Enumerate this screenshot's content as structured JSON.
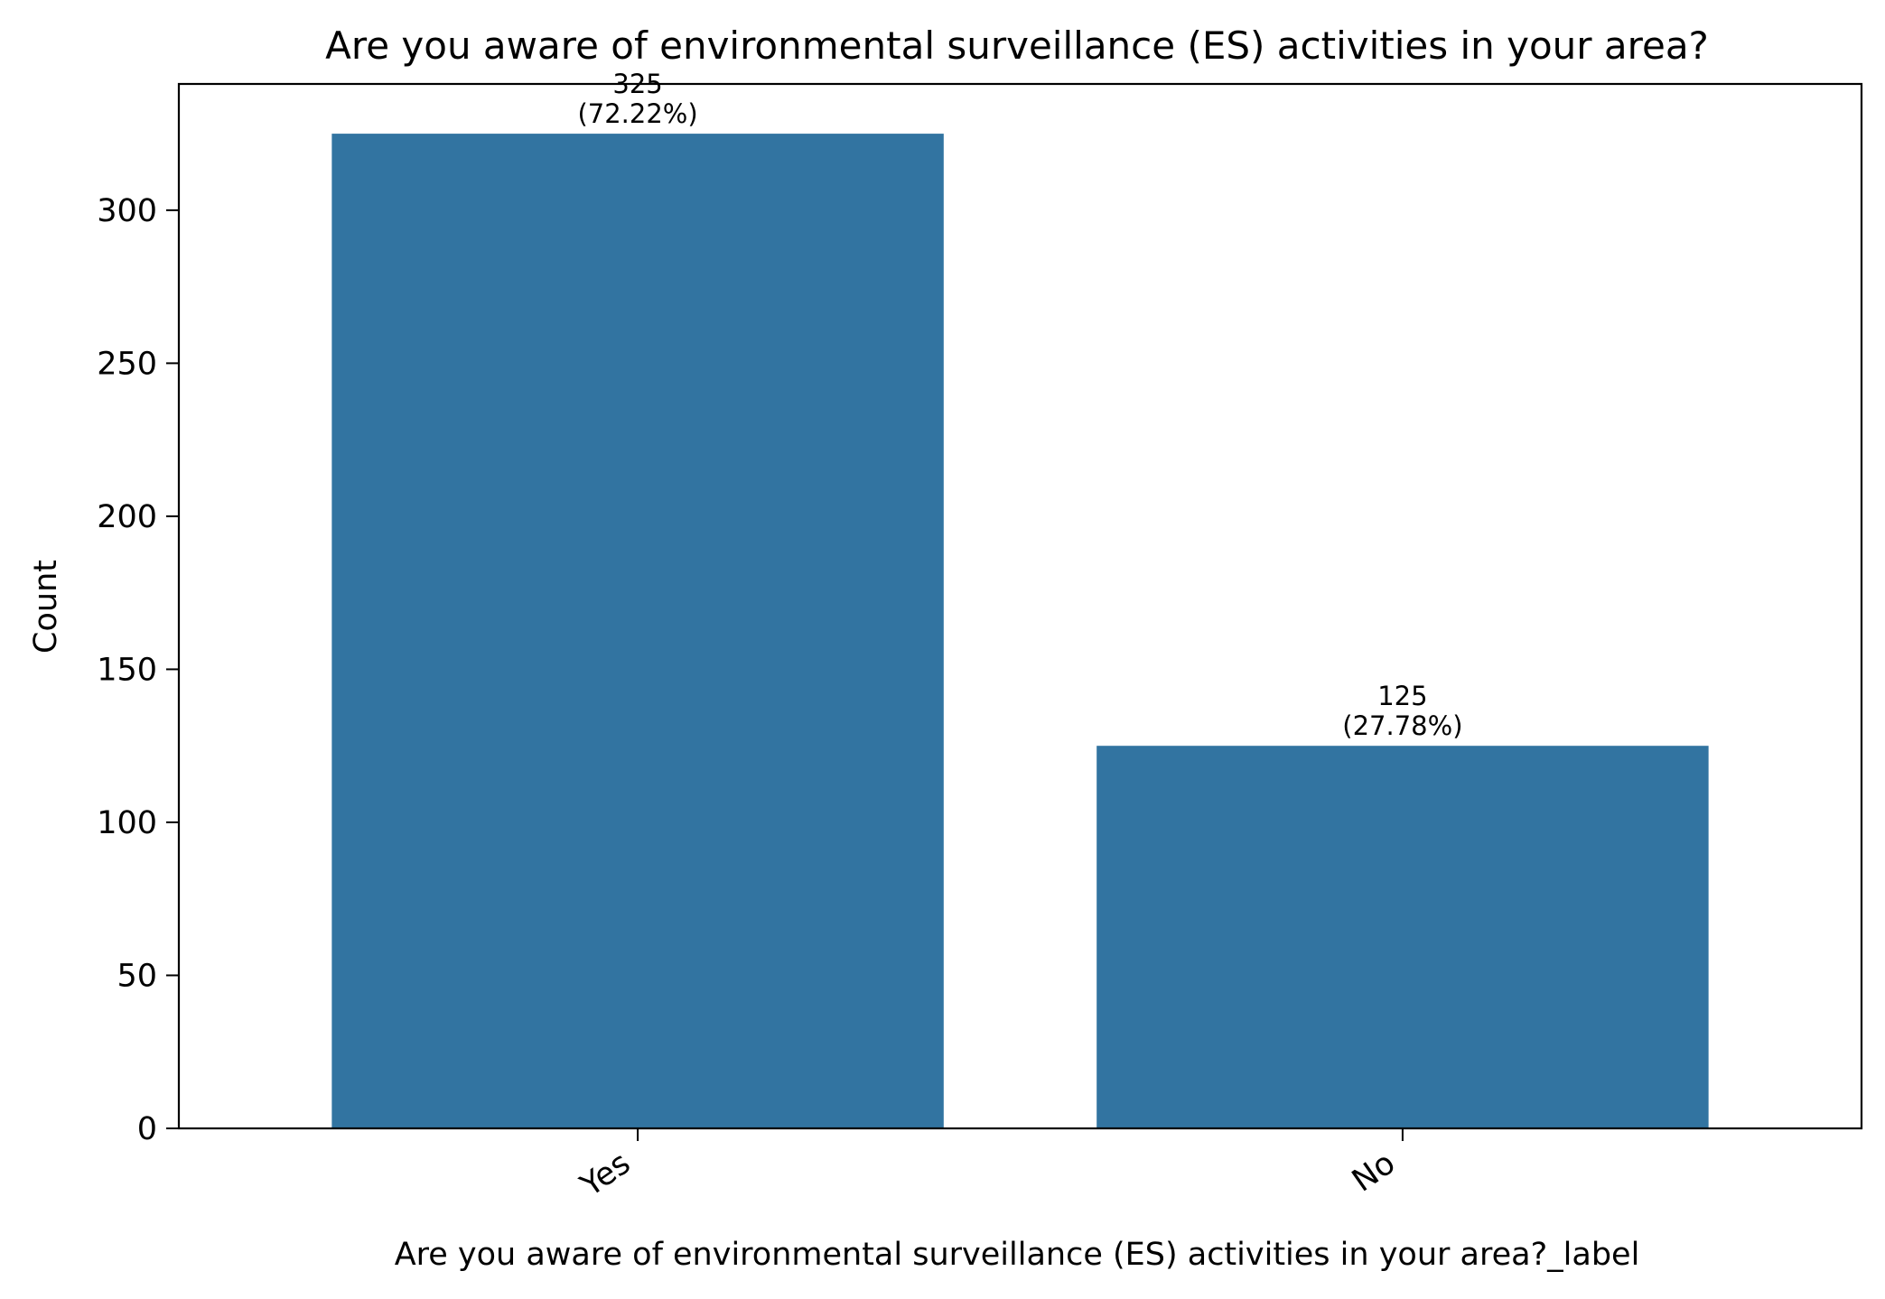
{
  "chart_data": {
    "type": "bar",
    "title": "Are you aware of environmental surveillance (ES) activities in your area?",
    "xlabel": "Are you aware of environmental surveillance (ES) activities in your area?_label",
    "ylabel": "Count",
    "categories": [
      "Yes",
      "No"
    ],
    "values": [
      325,
      125
    ],
    "data_labels": [
      {
        "count": "325",
        "percent": "(72.22%)"
      },
      {
        "count": "125",
        "percent": "(27.78%)"
      }
    ],
    "ylim": [
      0,
      341.25
    ],
    "yticks": [
      0,
      50,
      100,
      150,
      200,
      250,
      300
    ],
    "bar_color": "#3274a1",
    "grid": false,
    "legend": "none"
  }
}
